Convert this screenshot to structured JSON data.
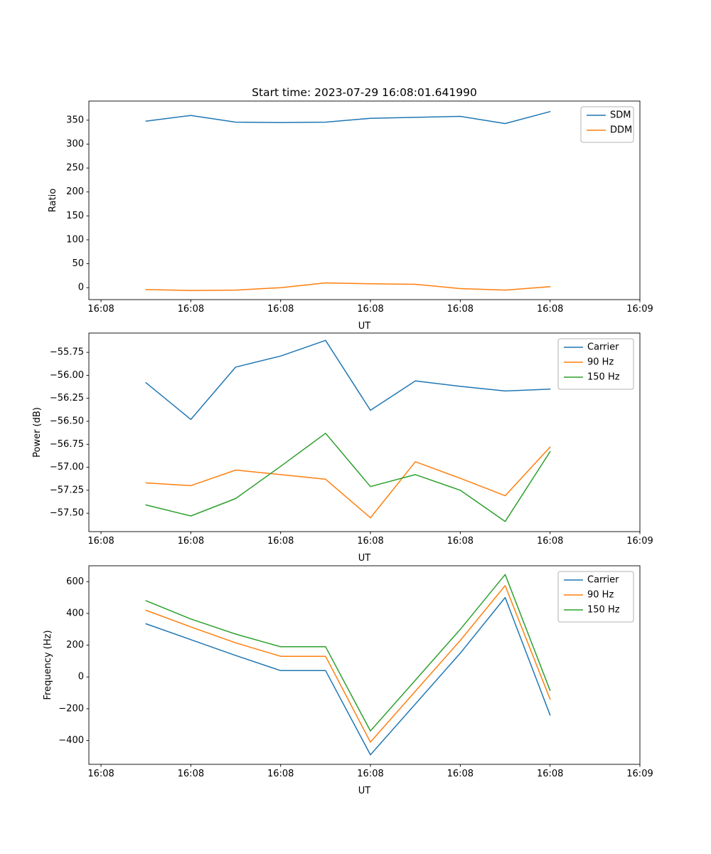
{
  "figure": {
    "title": "Start time: 2023-07-29 16:08:01.641990",
    "background": "#ffffff",
    "axis_color": "#000000",
    "legend_border_color": "#b3b3b3",
    "series_colors": {
      "blue": "#1f77b4",
      "orange": "#ff7f0e",
      "green": "#2ca02c"
    }
  },
  "chart_data": [
    {
      "type": "line",
      "name": "ratio-plot",
      "xlabel": "UT",
      "ylabel": "Ratio",
      "grid": false,
      "legend_position": "top-right",
      "x": [
        5,
        10,
        15,
        20,
        25,
        30,
        35,
        40,
        45,
        50
      ],
      "xlim": [
        -1.35,
        60
      ],
      "ylim": [
        -25,
        390
      ],
      "xticks": {
        "values": [
          0,
          10,
          20,
          30,
          40,
          50,
          60
        ],
        "labels": [
          "16:08",
          "16:08",
          "16:08",
          "16:08",
          "16:08",
          "16:08",
          "16:09"
        ]
      },
      "yticks": {
        "values": [
          0,
          50,
          100,
          150,
          200,
          250,
          300,
          350
        ],
        "labels": [
          "0",
          "50",
          "100",
          "150",
          "200",
          "250",
          "300",
          "350"
        ]
      },
      "series": [
        {
          "name": "SDM",
          "color": "#1f77b4",
          "values": [
            348,
            360,
            346,
            345,
            346,
            354,
            356,
            358,
            343,
            368
          ]
        },
        {
          "name": "DDM",
          "color": "#ff7f0e",
          "values": [
            -4,
            -6,
            -5,
            0,
            10,
            8,
            7,
            -2,
            -5,
            2
          ]
        }
      ]
    },
    {
      "type": "line",
      "name": "power-plot",
      "xlabel": "UT",
      "ylabel": "Power (dB)",
      "grid": false,
      "legend_position": "top-right",
      "x": [
        5,
        10,
        15,
        20,
        25,
        30,
        35,
        40,
        45,
        50
      ],
      "xlim": [
        -1.35,
        60
      ],
      "ylim": [
        -57.7,
        -55.54
      ],
      "xticks": {
        "values": [
          0,
          10,
          20,
          30,
          40,
          50,
          60
        ],
        "labels": [
          "16:08",
          "16:08",
          "16:08",
          "16:08",
          "16:08",
          "16:08",
          "16:09"
        ]
      },
      "yticks": {
        "values": [
          -57.5,
          -57.25,
          -57.0,
          -56.75,
          -56.5,
          -56.25,
          -56.0,
          -55.75
        ],
        "labels": [
          "−57.50",
          "−57.25",
          "−57.00",
          "−56.75",
          "−56.50",
          "−56.25",
          "−56.00",
          "−55.75"
        ]
      },
      "series": [
        {
          "name": "Carrier",
          "color": "#1f77b4",
          "values": [
            -56.08,
            -56.48,
            -55.91,
            -55.79,
            -55.62,
            -56.38,
            -56.06,
            -56.12,
            -56.17,
            -56.15
          ]
        },
        {
          "name": "90 Hz",
          "color": "#ff7f0e",
          "values": [
            -57.17,
            -57.2,
            -57.03,
            -57.08,
            -57.13,
            -57.55,
            -56.94,
            -57.12,
            -57.31,
            -56.78
          ]
        },
        {
          "name": "150 Hz",
          "color": "#2ca02c",
          "values": [
            -57.41,
            -57.53,
            -57.34,
            -56.99,
            -56.63,
            -57.21,
            -57.08,
            -57.25,
            -57.59,
            -56.83
          ]
        }
      ]
    },
    {
      "type": "line",
      "name": "frequency-plot",
      "xlabel": "UT",
      "ylabel": "Frequency (Hz)",
      "grid": false,
      "legend_position": "top-right",
      "x": [
        5,
        10,
        15,
        20,
        25,
        30,
        35,
        40,
        45,
        50
      ],
      "xlim": [
        -1.35,
        60
      ],
      "ylim": [
        -550,
        700
      ],
      "xticks": {
        "values": [
          0,
          10,
          20,
          30,
          40,
          50,
          60
        ],
        "labels": [
          "16:08",
          "16:08",
          "16:08",
          "16:08",
          "16:08",
          "16:08",
          "16:09"
        ]
      },
      "yticks": {
        "values": [
          -400,
          -200,
          0,
          200,
          400,
          600
        ],
        "labels": [
          "−400",
          "−200",
          "0",
          "200",
          "400",
          "600"
        ]
      },
      "series": [
        {
          "name": "Carrier",
          "color": "#1f77b4",
          "values": [
            335,
            235,
            135,
            40,
            40,
            -490,
            -170,
            150,
            500,
            -240
          ]
        },
        {
          "name": "90 Hz",
          "color": "#ff7f0e",
          "values": [
            420,
            315,
            215,
            130,
            130,
            -410,
            -90,
            230,
            575,
            -140
          ]
        },
        {
          "name": "150 Hz",
          "color": "#2ca02c",
          "values": [
            480,
            365,
            270,
            190,
            190,
            -340,
            -20,
            300,
            645,
            -85
          ]
        }
      ]
    }
  ]
}
